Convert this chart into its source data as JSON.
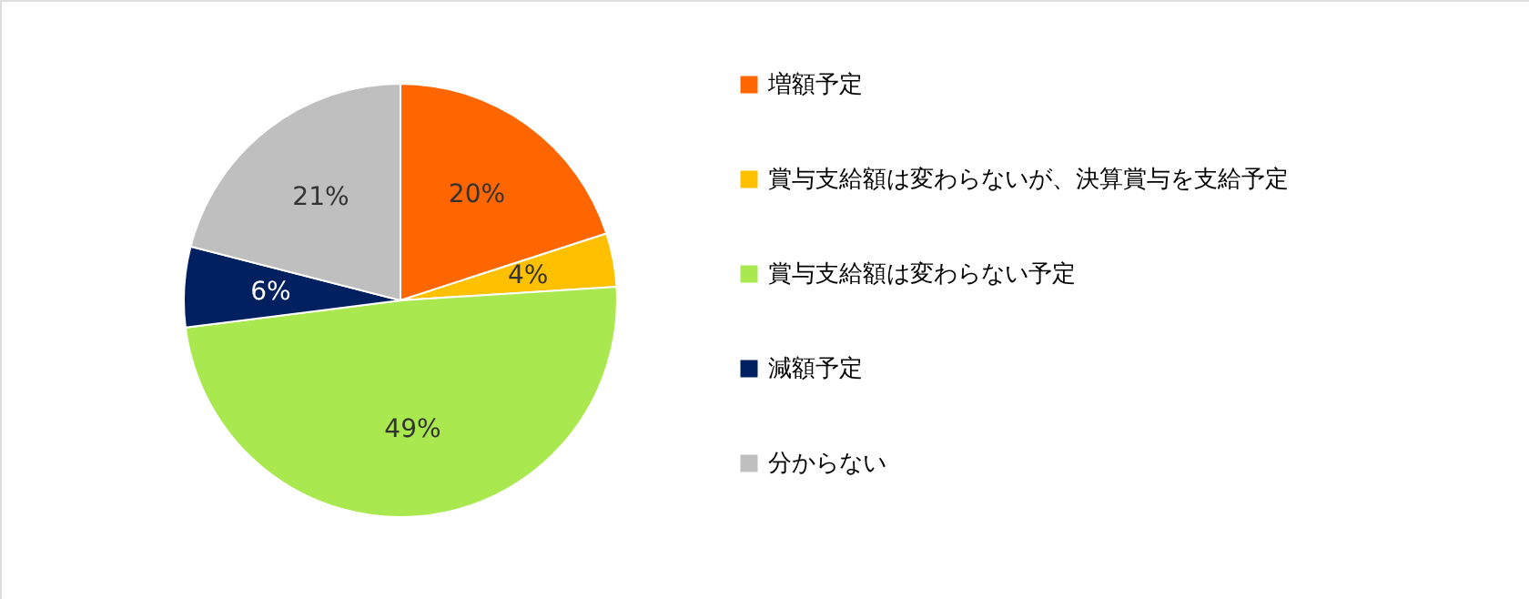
{
  "chart_data": {
    "type": "pie",
    "categories": [
      "増額予定",
      "賞与支給額は変わらないが、決算賞与を支給予定",
      "賞与支給額は変わらない予定",
      "減額予定",
      "分からない"
    ],
    "values": [
      20,
      4,
      49,
      6,
      21
    ],
    "colors": [
      "#ff6600",
      "#ffc000",
      "#a9e84e",
      "#002060",
      "#bfbfbf"
    ],
    "value_labels": [
      "20%",
      "4%",
      "49%",
      "6%",
      "21%"
    ],
    "legend": "right"
  }
}
